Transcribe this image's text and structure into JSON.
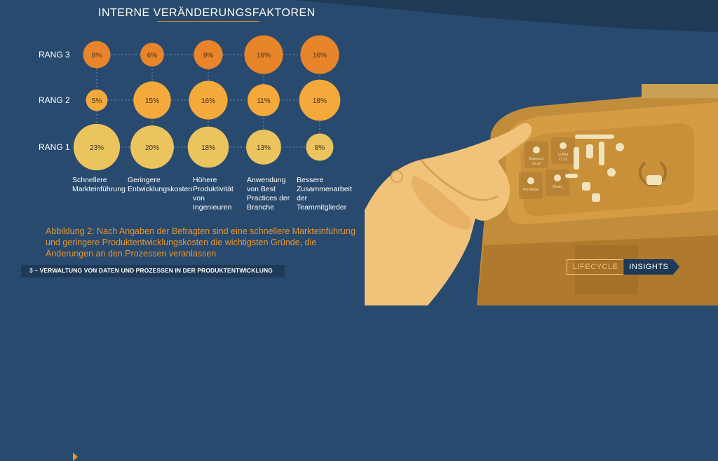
{
  "title": "INTERNE VERÄNDERUNGSFAKTOREN",
  "chart_data": {
    "type": "bubble-matrix",
    "title": "INTERNE VERÄNDERUNGSFAKTOREN",
    "rows": [
      "RANG 3",
      "RANG 2",
      "RANG 1"
    ],
    "categories": [
      "Schnellere Markteinführung",
      "Geringere Entwicklungskosten",
      "Höhere Produktivität von Ingenieuren",
      "Anwendung von Best Practices der Branche",
      "Bessere Zusammenarbeit der Teammitglieder"
    ],
    "category_labels": [
      [
        "Schnellere",
        "Markteinführung"
      ],
      [
        "Geringere",
        "Entwicklungskosten"
      ],
      [
        "Höhere",
        "Produktivität",
        "von",
        "Ingenieuren"
      ],
      [
        "Anwendung",
        "von Best",
        "Practices der",
        "Branche"
      ],
      [
        "Bessere",
        "Zusammenarbeit",
        "der",
        "Teammitglieder"
      ]
    ],
    "series": [
      {
        "name": "RANG 3",
        "values": [
          8,
          6,
          9,
          16,
          16
        ],
        "labels": [
          "8%",
          "6%",
          "9%",
          "16%",
          "16%"
        ]
      },
      {
        "name": "RANG 2",
        "values": [
          5,
          15,
          16,
          11,
          18
        ],
        "labels": [
          "5%",
          "15%",
          "16%",
          "11%",
          "18%"
        ]
      },
      {
        "name": "RANG 1",
        "values": [
          23,
          20,
          18,
          13,
          8
        ],
        "labels": [
          "23%",
          "20%",
          "18%",
          "13%",
          "8%"
        ]
      }
    ],
    "colors": {
      "RANG 3": "#e8852a",
      "RANG 2": "#f5a93a",
      "RANG 1": "#ecc45d"
    },
    "grid": true
  },
  "caption": "Abbildung 2: Nach Angaben der Befragten sind eine schnellere Markteinführung und geringere Produktentwicklungskosten die wichtigsten Gründe, die Änderungen an den Prozessen veranlassen.",
  "footer": "3 – VERWALTUNG VON DATEN UND PROZESSEN IN DER PRODUKTENTWICKLUNG",
  "logo": {
    "left": "LIFECYCLE",
    "right": "INSIGHTS"
  },
  "machine_buttons": [
    {
      "name": "Espresso",
      "sub": "x1 x2"
    },
    {
      "name": "Coffee",
      "sub": "x1 x2"
    },
    {
      "name": "Hot Water",
      "sub": ""
    },
    {
      "name": "Steam",
      "sub": ""
    }
  ]
}
